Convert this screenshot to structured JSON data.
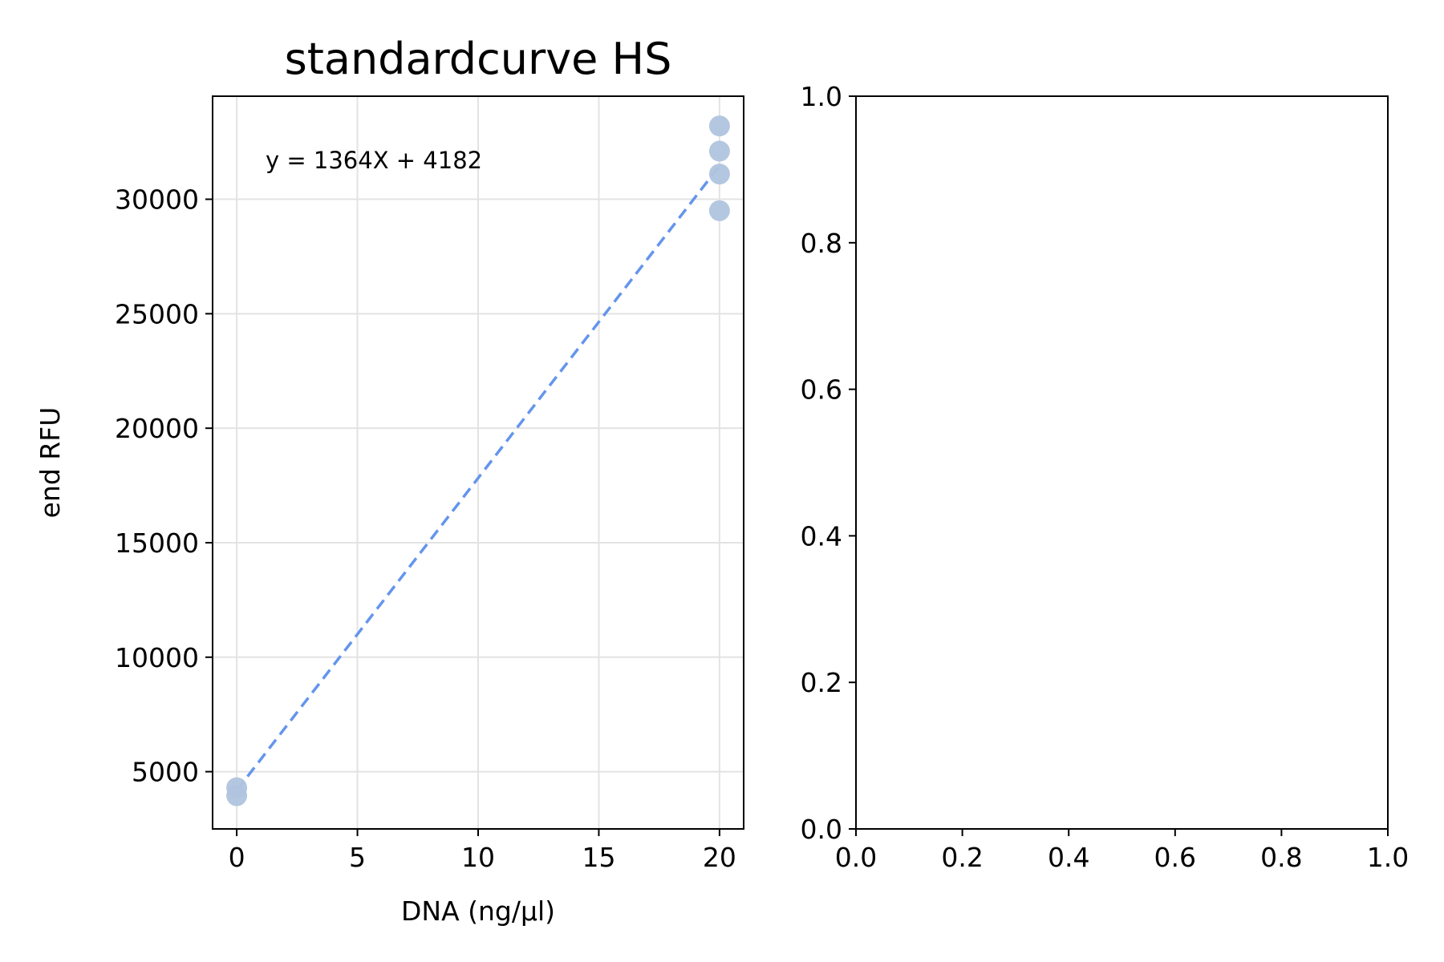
{
  "chart_data": [
    {
      "type": "scatter",
      "title": "standardcurve HS",
      "xlabel": "DNA (ng/µl)",
      "ylabel": "end RFU",
      "xlim": [
        -1,
        21
      ],
      "ylim": [
        2500,
        34500
      ],
      "xticks": [
        0,
        5,
        10,
        15,
        20
      ],
      "xtick_labels": [
        "0",
        "5",
        "10",
        "15",
        "20"
      ],
      "yticks": [
        5000,
        10000,
        15000,
        20000,
        25000,
        30000
      ],
      "ytick_labels": [
        "5000",
        "10000",
        "15000",
        "20000",
        "25000",
        "30000"
      ],
      "grid": true,
      "points": [
        {
          "x": 0,
          "y": 4300
        },
        {
          "x": 0,
          "y": 3950
        },
        {
          "x": 20,
          "y": 33200
        },
        {
          "x": 20,
          "y": 32100
        },
        {
          "x": 20,
          "y": 31100
        },
        {
          "x": 20,
          "y": 29500
        }
      ],
      "point_color": "#b0c4de",
      "fit": {
        "slope": 1364,
        "intercept": 4182,
        "x_range": [
          0,
          20
        ],
        "color": "#6495ed"
      },
      "annotation": {
        "text": "y = 1364X + 4182",
        "color": "#800080"
      }
    },
    {
      "type": "scatter",
      "title": "",
      "xlabel": "",
      "ylabel": "",
      "xlim": [
        0,
        1
      ],
      "ylim": [
        0,
        1
      ],
      "xticks": [
        0,
        0.2,
        0.4,
        0.6,
        0.8,
        1.0
      ],
      "xtick_labels": [
        "0.0",
        "0.2",
        "0.4",
        "0.6",
        "0.8",
        "1.0"
      ],
      "yticks": [
        0,
        0.2,
        0.4,
        0.6,
        0.8,
        1.0
      ],
      "ytick_labels": [
        "0.0",
        "0.2",
        "0.4",
        "0.6",
        "0.8",
        "1.0"
      ],
      "grid": false,
      "points": []
    }
  ]
}
